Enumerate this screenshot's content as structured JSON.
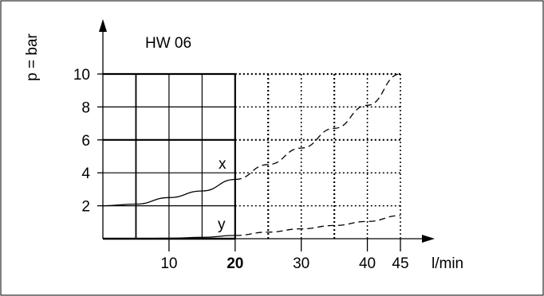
{
  "chart_data": {
    "type": "line",
    "title": "HW 06",
    "ylabel": "p = bar",
    "xlabel": "l/min",
    "xlim": [
      0,
      45
    ],
    "ylim": [
      0,
      10
    ],
    "x_ticks": [
      10,
      20,
      30,
      40,
      45
    ],
    "y_ticks": [
      2,
      4,
      6,
      8,
      10
    ],
    "emphasized_x_tick": 20,
    "grid": "solid up to 20 l/min, dotted beyond",
    "series": [
      {
        "name": "x",
        "style": "solid to 20 l/min, dashed beyond",
        "points": [
          [
            0,
            2.0
          ],
          [
            5,
            2.1
          ],
          [
            10,
            2.5
          ],
          [
            15,
            2.9
          ],
          [
            20,
            3.6
          ],
          [
            25,
            4.5
          ],
          [
            30,
            5.5
          ],
          [
            35,
            6.7
          ],
          [
            40,
            8.1
          ],
          [
            45,
            10.0
          ]
        ]
      },
      {
        "name": "y",
        "style": "solid to 20 l/min, dashed beyond",
        "points": [
          [
            0,
            0.0
          ],
          [
            5,
            0.0
          ],
          [
            10,
            0.03
          ],
          [
            15,
            0.08
          ],
          [
            20,
            0.2
          ],
          [
            25,
            0.4
          ],
          [
            30,
            0.6
          ],
          [
            35,
            0.8
          ],
          [
            40,
            1.05
          ],
          [
            45,
            1.4
          ]
        ]
      }
    ]
  }
}
